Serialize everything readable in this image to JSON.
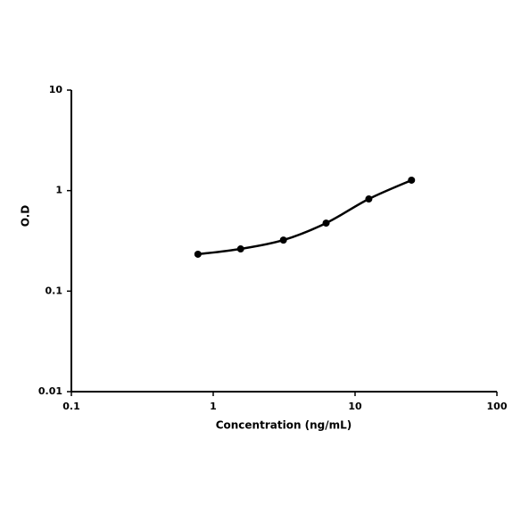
{
  "chart_data": {
    "type": "line",
    "xlabel": "Concentration (ng/mL)",
    "ylabel": "O.D",
    "x": [
      0.78,
      1.56,
      3.125,
      6.25,
      12.5,
      25
    ],
    "series": [
      {
        "name": "O.D",
        "color": "#000000",
        "values": [
          0.233,
          0.263,
          0.322,
          0.475,
          0.826,
          1.27
        ]
      }
    ],
    "xlim": [
      0.1,
      100
    ],
    "xticks": [
      0.1,
      1,
      10,
      100
    ],
    "xscale": "log",
    "ylim": [
      0.01,
      10
    ],
    "yticks": [
      0.01,
      0.1,
      1,
      10
    ],
    "yscale": "log",
    "grid": false,
    "smooth": true,
    "markers": true
  }
}
